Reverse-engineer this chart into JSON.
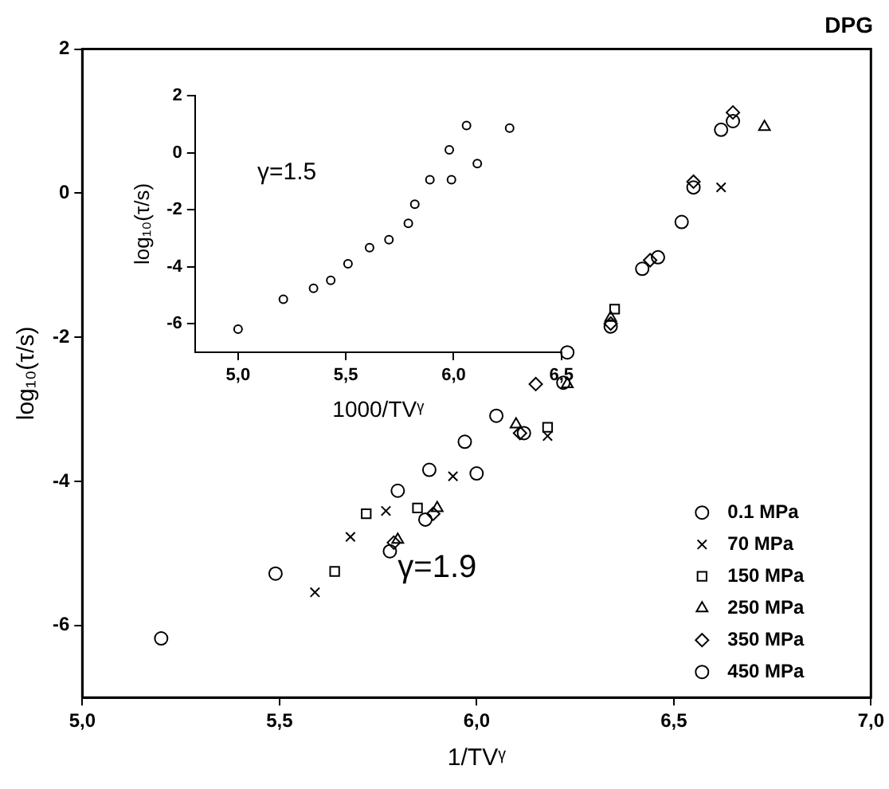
{
  "chart_data": [
    {
      "type": "scatter",
      "title": "DPG",
      "xlabel": "1/TVᵞ",
      "ylabel": "log₁₀(τ/s)",
      "xlim": [
        5,
        7
      ],
      "ylim": [
        -7,
        2
      ],
      "xticks": [
        {
          "value": 5,
          "label": "5,0"
        },
        {
          "value": 5.5,
          "label": "5,5"
        },
        {
          "value": 6,
          "label": "6,0"
        },
        {
          "value": 6.5,
          "label": "6,5"
        },
        {
          "value": 7,
          "label": "7,0"
        }
      ],
      "yticks": [
        -6,
        -4,
        -2,
        0,
        2
      ],
      "grid": false,
      "legend": "bottom right",
      "annotations": [
        "γ=1.9"
      ],
      "series": [
        {
          "name": "0.1 MPa",
          "color": "#000000",
          "marker": "circle",
          "x": [
            5.2,
            5.49,
            5.8,
            5.88,
            5.97,
            6.05,
            6.23
          ],
          "values": [
            -6.18,
            -5.28,
            -4.13,
            -3.84,
            -3.45,
            -3.09,
            -2.21
          ]
        },
        {
          "name": "70 MPa",
          "color": "#000000",
          "marker": "cross",
          "x": [
            5.59,
            5.68,
            5.77,
            5.94,
            6.18,
            6.62
          ],
          "values": [
            -5.54,
            -4.77,
            -4.41,
            -3.93,
            -3.37,
            0.08
          ]
        },
        {
          "name": "150 MPa",
          "color": "#000000",
          "marker": "square",
          "x": [
            5.64,
            5.72,
            5.85,
            6.18,
            6.35
          ],
          "values": [
            -5.25,
            -4.45,
            -4.37,
            -3.25,
            -1.61
          ]
        },
        {
          "name": "250 MPa",
          "color": "#000000",
          "marker": "triangle",
          "x": [
            5.8,
            5.9,
            6.1,
            6.23,
            6.34,
            6.73
          ],
          "values": [
            -4.81,
            -4.37,
            -3.21,
            -2.65,
            -1.73,
            0.92
          ]
        },
        {
          "name": "350 MPa",
          "color": "#000000",
          "marker": "diamond",
          "x": [
            5.79,
            5.89,
            6.11,
            6.15,
            6.34,
            6.44,
            6.55,
            6.65
          ],
          "values": [
            -4.85,
            -4.45,
            -3.33,
            -2.65,
            -1.81,
            -0.93,
            0.16,
            1.12
          ]
        },
        {
          "name": "450 MPa",
          "color": "#000000",
          "marker": "circle",
          "x": [
            5.78,
            5.87,
            6.0,
            6.12,
            6.22,
            6.34,
            6.42,
            6.46,
            6.52,
            6.55,
            6.62,
            6.65
          ],
          "values": [
            -4.97,
            -4.53,
            -3.89,
            -3.33,
            -2.63,
            -1.85,
            -1.05,
            -0.89,
            -0.4,
            0.08,
            0.88,
            1.0
          ]
        }
      ]
    },
    {
      "type": "scatter",
      "xlabel": "1000/TVᵞ",
      "ylabel": "log₁₀(τ/s)",
      "xlim": [
        4.8,
        6.5
      ],
      "ylim": [
        -7,
        2
      ],
      "xticks": [
        {
          "value": 5,
          "label": "5,0"
        },
        {
          "value": 5.5,
          "label": "5,5"
        },
        {
          "value": 6,
          "label": "6,0"
        },
        {
          "value": 6.5,
          "label": "6,5"
        }
      ],
      "yticks": [
        -6,
        -4,
        -2,
        0,
        2
      ],
      "grid": false,
      "annotations": [
        "γ=1.5"
      ],
      "series": [
        {
          "color": "#000000",
          "marker": "circle",
          "x": [
            5.0,
            5.21,
            5.35,
            5.43,
            5.51,
            5.61,
            5.7,
            5.79,
            5.82,
            5.89,
            5.99,
            5.98,
            6.06,
            6.11,
            6.26
          ],
          "values": [
            -6.19,
            -5.14,
            -4.76,
            -4.48,
            -3.9,
            -3.33,
            -3.05,
            -2.48,
            -1.81,
            -0.95,
            -0.95,
            0.1,
            0.95,
            -0.38,
            0.86
          ]
        }
      ]
    }
  ]
}
